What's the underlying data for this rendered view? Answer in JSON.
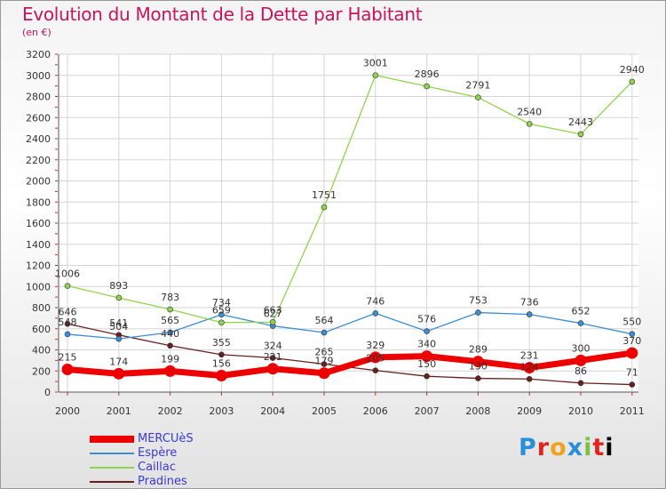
{
  "header": {
    "title": "Evolution du Montant de la Dette par Habitant",
    "subtitle": "(en €)"
  },
  "brand": {
    "letters": [
      "P",
      "r",
      "o",
      "x",
      "i",
      "t",
      "i"
    ]
  },
  "chart_data": {
    "type": "line",
    "title": "Evolution du Montant de la Dette par Habitant",
    "subtitle": "(en €)",
    "categories": [
      "2000",
      "2001",
      "2002",
      "2003",
      "2004",
      "2005",
      "2006",
      "2007",
      "2008",
      "2009",
      "2010",
      "2011"
    ],
    "ylim": [
      0,
      3200
    ],
    "yticks": [
      0,
      200,
      400,
      600,
      800,
      1000,
      1200,
      1400,
      1600,
      1800,
      2000,
      2200,
      2400,
      2600,
      2800,
      3000,
      3200
    ],
    "grid": true,
    "legend_position": "bottom-left",
    "series": [
      {
        "name": "Pradines",
        "color": "#6b1e1e",
        "values": [
          646,
          541,
          440,
          355,
          324,
          265,
          205,
          150,
          130,
          124,
          86,
          71
        ],
        "labels": [
          "646",
          "541",
          "440",
          "355",
          "324",
          "265",
          "205",
          "150",
          "130",
          "124",
          "86",
          "71"
        ]
      },
      {
        "name": "Espère",
        "color": "#3d8ed0",
        "values": [
          548,
          504,
          565,
          734,
          627,
          564,
          746,
          576,
          753,
          736,
          652,
          550
        ],
        "labels": [
          "548",
          "504",
          "565",
          "734",
          "627",
          "564",
          "746",
          "576",
          "753",
          "736",
          "652",
          "550"
        ]
      },
      {
        "name": "Caillac",
        "color": "#8fd44c",
        "values": [
          1006,
          893,
          783,
          659,
          663,
          1751,
          3001,
          2896,
          2791,
          2540,
          2443,
          2940
        ],
        "labels": [
          "1006",
          "893",
          "783",
          "659",
          "663",
          "1751",
          "3001",
          "2896",
          "2791",
          "2540",
          "2443",
          "2940"
        ]
      },
      {
        "name": "MERCUèS",
        "color": "#ee0000",
        "values": [
          215,
          174,
          199,
          156,
          221,
          179,
          329,
          340,
          289,
          231,
          300,
          370
        ],
        "labels": [
          "215",
          "174",
          "199",
          "156",
          "221",
          "179",
          "329",
          "340",
          "289",
          "231",
          "300",
          "370"
        ]
      }
    ],
    "legend_order": [
      "MERCUèS",
      "Espère",
      "Caillac",
      "Pradines"
    ]
  }
}
